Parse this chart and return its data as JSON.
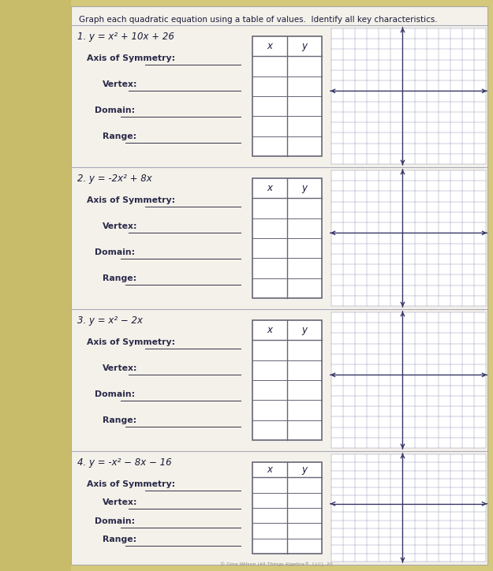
{
  "bg_left_color": "#d4c87a",
  "bg_right_color": "#e8e4d8",
  "paper_color": "#f0ede6",
  "title": "Graph each quadratic equation using a table of values.  Identify all key characteristics.",
  "title_fontsize": 7.5,
  "problems": [
    {
      "number": "1.",
      "equation": "y = x² + 10x + 26",
      "labels": [
        "Axis of Symmetry:",
        "Vertex:",
        "Domain:",
        "Range:"
      ]
    },
    {
      "number": "2.",
      "equation": "y = -2x² + 8x",
      "labels": [
        "Axis of Symmetry:",
        "Vertex:",
        "Domain:",
        "Range:"
      ]
    },
    {
      "number": "3.",
      "equation": "y = x² − 2x",
      "labels": [
        "Axis of Symmetry:",
        "Vertex:",
        "Domain:",
        "Range:"
      ]
    },
    {
      "number": "4.",
      "equation": "y = -x² − 8x − 16",
      "labels": [
        "Axis of Symmetry:",
        "Vertex:",
        "Domain:",
        "Range:"
      ]
    }
  ],
  "grid_line_color": "#9999bb",
  "table_border_color": "#666677",
  "label_color": "#2a2a4a",
  "line_color": "#333344",
  "text_color": "#1a1a3a",
  "sep_color": "#aaaabc",
  "num_table_rows": 5,
  "grid_cols": 13,
  "grid_rows": 13,
  "label_fontsize": 7.8,
  "eq_fontsize": 8.5,
  "axis_arrow_color": "#333366",
  "copyright": "© Gina Wilson (All Things Algebra®, LLC), 20"
}
